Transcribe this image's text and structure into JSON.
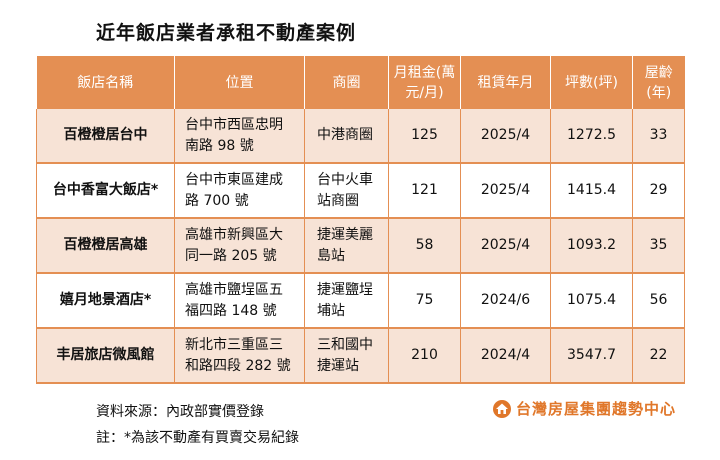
{
  "title": "近年飯店業者承租不動產案例",
  "table": {
    "headers": [
      [
        "飯店名稱"
      ],
      [
        "位置"
      ],
      [
        "商圈"
      ],
      [
        "月租金(萬",
        "元/月)"
      ],
      [
        "租賃年月"
      ],
      [
        "坪數(坪)"
      ],
      [
        "屋齡",
        "(年)"
      ]
    ],
    "rows": [
      {
        "name": "百橙橙居台中",
        "location": [
          "台中市西區忠明",
          "南路 98 號"
        ],
        "district": [
          "中港商圈"
        ],
        "rent": "125",
        "date": "2025/4",
        "area": "1272.5",
        "age": "33"
      },
      {
        "name": "台中香富大飯店*",
        "location": [
          "台中市東區建成",
          "路 700 號"
        ],
        "district": [
          "台中火車",
          "站商圈"
        ],
        "rent": "121",
        "date": "2025/4",
        "area": "1415.4",
        "age": "29"
      },
      {
        "name": "百橙橙居高雄",
        "location": [
          "高雄市新興區大",
          "同一路 205 號"
        ],
        "district": [
          "捷運美麗",
          "島站"
        ],
        "rent": "58",
        "date": "2025/4",
        "area": "1093.2",
        "age": "35"
      },
      {
        "name": "嬉月地景酒店*",
        "location": [
          "高雄市鹽埕區五",
          "福四路 148 號"
        ],
        "district": [
          "捷運鹽埕",
          "埔站"
        ],
        "rent": "75",
        "date": "2024/6",
        "area": "1075.4",
        "age": "56"
      },
      {
        "name": "丰居旅店微風館",
        "location": [
          "新北市三重區三",
          "和路四段 282 號"
        ],
        "district": [
          "三和國中",
          "捷運站"
        ],
        "rent": "210",
        "date": "2024/4",
        "area": "3547.7",
        "age": "22"
      }
    ]
  },
  "footnotes": {
    "source": "資料來源：內政部實價登錄",
    "note": "註：*為該不動產有買賣交易紀錄"
  },
  "brand": {
    "name": "台灣房屋集團趨勢中心",
    "logo_icon": "house-logo-icon",
    "color": "#e0772a"
  },
  "colors": {
    "header_bg": "#e48f53",
    "alt_row_bg": "#f7e3d6"
  }
}
